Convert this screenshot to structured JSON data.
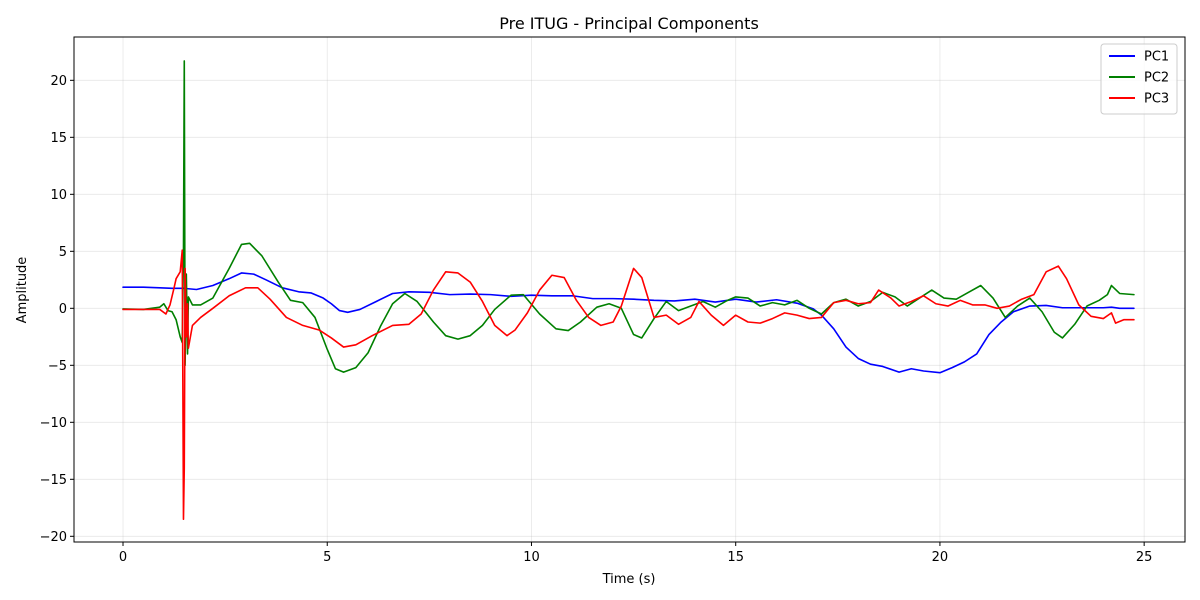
{
  "chart_data": {
    "type": "line",
    "title": "Pre ITUG - Principal Components",
    "xlabel": "Time (s)",
    "ylabel": "Amplitude",
    "xlim": [
      -1.2,
      26
    ],
    "ylim": [
      -20.5,
      23.8
    ],
    "xticks": [
      0,
      5,
      10,
      15,
      20,
      25
    ],
    "xtick_labels": [
      "0",
      "5",
      "10",
      "15",
      "20",
      "25"
    ],
    "yticks": [
      -20,
      -15,
      -10,
      -5,
      0,
      5,
      10,
      15,
      20
    ],
    "ytick_labels": [
      "−20",
      "−15",
      "−10",
      "−5",
      "0",
      "5",
      "10",
      "15",
      "20"
    ],
    "grid": true,
    "legend_position": "top-right",
    "series": [
      {
        "name": "PC1",
        "color": "#0000ff",
        "points": [
          [
            0,
            1.85
          ],
          [
            0.5,
            1.85
          ],
          [
            0.9,
            1.8
          ],
          [
            1.2,
            1.75
          ],
          [
            1.5,
            1.75
          ],
          [
            1.8,
            1.65
          ],
          [
            2.2,
            2.0
          ],
          [
            2.6,
            2.6
          ],
          [
            2.9,
            3.1
          ],
          [
            3.2,
            3.0
          ],
          [
            3.5,
            2.5
          ],
          [
            3.9,
            1.8
          ],
          [
            4.3,
            1.45
          ],
          [
            4.6,
            1.35
          ],
          [
            4.9,
            0.9
          ],
          [
            5.1,
            0.4
          ],
          [
            5.3,
            -0.2
          ],
          [
            5.5,
            -0.35
          ],
          [
            5.8,
            -0.1
          ],
          [
            6.2,
            0.6
          ],
          [
            6.6,
            1.3
          ],
          [
            7.0,
            1.45
          ],
          [
            7.5,
            1.4
          ],
          [
            8.0,
            1.2
          ],
          [
            8.5,
            1.25
          ],
          [
            9.0,
            1.2
          ],
          [
            9.5,
            1.05
          ],
          [
            10.0,
            1.15
          ],
          [
            10.5,
            1.1
          ],
          [
            11.0,
            1.1
          ],
          [
            11.5,
            0.85
          ],
          [
            12.0,
            0.85
          ],
          [
            12.5,
            0.8
          ],
          [
            13.0,
            0.7
          ],
          [
            13.5,
            0.65
          ],
          [
            14.0,
            0.8
          ],
          [
            14.5,
            0.55
          ],
          [
            15.0,
            0.8
          ],
          [
            15.5,
            0.55
          ],
          [
            16.0,
            0.75
          ],
          [
            16.5,
            0.45
          ],
          [
            16.9,
            -0.05
          ],
          [
            17.1,
            -0.6
          ],
          [
            17.4,
            -1.8
          ],
          [
            17.7,
            -3.4
          ],
          [
            18.0,
            -4.4
          ],
          [
            18.3,
            -4.9
          ],
          [
            18.6,
            -5.1
          ],
          [
            19.0,
            -5.6
          ],
          [
            19.3,
            -5.3
          ],
          [
            19.6,
            -5.5
          ],
          [
            20.0,
            -5.65
          ],
          [
            20.3,
            -5.2
          ],
          [
            20.6,
            -4.7
          ],
          [
            20.9,
            -4.0
          ],
          [
            21.2,
            -2.3
          ],
          [
            21.5,
            -1.2
          ],
          [
            21.8,
            -0.3
          ],
          [
            22.2,
            0.2
          ],
          [
            22.6,
            0.25
          ],
          [
            23.0,
            0.05
          ],
          [
            23.5,
            0.05
          ],
          [
            24.0,
            0.05
          ],
          [
            24.2,
            0.1
          ],
          [
            24.4,
            0.0
          ],
          [
            24.75,
            0.0
          ]
        ]
      },
      {
        "name": "PC2",
        "color": "#008000",
        "points": [
          [
            0,
            -0.05
          ],
          [
            0.5,
            -0.1
          ],
          [
            0.9,
            0.1
          ],
          [
            1.0,
            0.4
          ],
          [
            1.1,
            -0.2
          ],
          [
            1.2,
            -0.3
          ],
          [
            1.3,
            -1.0
          ],
          [
            1.4,
            -2.5
          ],
          [
            1.45,
            -3.0
          ],
          [
            1.48,
            5.0
          ],
          [
            1.5,
            21.7
          ],
          [
            1.52,
            -5.0
          ],
          [
            1.55,
            3.0
          ],
          [
            1.58,
            -4.0
          ],
          [
            1.6,
            1.0
          ],
          [
            1.7,
            0.3
          ],
          [
            1.9,
            0.3
          ],
          [
            2.2,
            0.9
          ],
          [
            2.6,
            3.5
          ],
          [
            2.9,
            5.6
          ],
          [
            3.1,
            5.7
          ],
          [
            3.4,
            4.6
          ],
          [
            3.8,
            2.3
          ],
          [
            4.1,
            0.7
          ],
          [
            4.4,
            0.5
          ],
          [
            4.7,
            -0.8
          ],
          [
            5.0,
            -3.6
          ],
          [
            5.2,
            -5.3
          ],
          [
            5.4,
            -5.6
          ],
          [
            5.7,
            -5.2
          ],
          [
            6.0,
            -3.9
          ],
          [
            6.3,
            -1.6
          ],
          [
            6.6,
            0.4
          ],
          [
            6.9,
            1.3
          ],
          [
            7.2,
            0.6
          ],
          [
            7.6,
            -1.2
          ],
          [
            7.9,
            -2.4
          ],
          [
            8.2,
            -2.7
          ],
          [
            8.5,
            -2.4
          ],
          [
            8.8,
            -1.5
          ],
          [
            9.1,
            -0.1
          ],
          [
            9.5,
            1.15
          ],
          [
            9.8,
            1.2
          ],
          [
            10.2,
            -0.5
          ],
          [
            10.6,
            -1.8
          ],
          [
            10.9,
            -1.95
          ],
          [
            11.2,
            -1.2
          ],
          [
            11.6,
            0.1
          ],
          [
            11.9,
            0.4
          ],
          [
            12.2,
            0.0
          ],
          [
            12.5,
            -2.3
          ],
          [
            12.7,
            -2.6
          ],
          [
            13.0,
            -0.9
          ],
          [
            13.3,
            0.6
          ],
          [
            13.6,
            -0.2
          ],
          [
            13.9,
            0.2
          ],
          [
            14.2,
            0.6
          ],
          [
            14.5,
            0.1
          ],
          [
            14.8,
            0.7
          ],
          [
            15.0,
            1.0
          ],
          [
            15.3,
            0.9
          ],
          [
            15.6,
            0.2
          ],
          [
            15.9,
            0.5
          ],
          [
            16.2,
            0.3
          ],
          [
            16.5,
            0.7
          ],
          [
            16.8,
            0.0
          ],
          [
            17.1,
            -0.5
          ],
          [
            17.4,
            0.5
          ],
          [
            17.7,
            0.8
          ],
          [
            18.0,
            0.2
          ],
          [
            18.3,
            0.6
          ],
          [
            18.6,
            1.4
          ],
          [
            18.9,
            1.0
          ],
          [
            19.2,
            0.2
          ],
          [
            19.5,
            0.9
          ],
          [
            19.8,
            1.6
          ],
          [
            20.1,
            0.9
          ],
          [
            20.4,
            0.8
          ],
          [
            20.7,
            1.4
          ],
          [
            21.0,
            2.0
          ],
          [
            21.3,
            0.9
          ],
          [
            21.6,
            -0.8
          ],
          [
            21.9,
            0.2
          ],
          [
            22.2,
            0.9
          ],
          [
            22.5,
            -0.3
          ],
          [
            22.8,
            -2.1
          ],
          [
            23.0,
            -2.6
          ],
          [
            23.3,
            -1.4
          ],
          [
            23.6,
            0.2
          ],
          [
            23.9,
            0.7
          ],
          [
            24.1,
            1.2
          ],
          [
            24.2,
            2.0
          ],
          [
            24.4,
            1.3
          ],
          [
            24.75,
            1.2
          ]
        ]
      },
      {
        "name": "PC3",
        "color": "#ff0000",
        "points": [
          [
            0,
            -0.1
          ],
          [
            0.5,
            -0.1
          ],
          [
            0.9,
            -0.1
          ],
          [
            1.05,
            -0.5
          ],
          [
            1.15,
            0.3
          ],
          [
            1.25,
            1.8
          ],
          [
            1.3,
            2.6
          ],
          [
            1.4,
            3.2
          ],
          [
            1.45,
            5.1
          ],
          [
            1.48,
            -18.5
          ],
          [
            1.5,
            -14.0
          ],
          [
            1.52,
            3.5
          ],
          [
            1.55,
            -2.5
          ],
          [
            1.58,
            0.4
          ],
          [
            1.6,
            -3.5
          ],
          [
            1.7,
            -1.5
          ],
          [
            1.9,
            -0.8
          ],
          [
            2.2,
            0.0
          ],
          [
            2.6,
            1.1
          ],
          [
            3.0,
            1.8
          ],
          [
            3.3,
            1.8
          ],
          [
            3.6,
            0.8
          ],
          [
            4.0,
            -0.8
          ],
          [
            4.4,
            -1.5
          ],
          [
            4.8,
            -1.9
          ],
          [
            5.1,
            -2.6
          ],
          [
            5.4,
            -3.4
          ],
          [
            5.7,
            -3.2
          ],
          [
            6.1,
            -2.4
          ],
          [
            6.6,
            -1.5
          ],
          [
            7.0,
            -1.4
          ],
          [
            7.3,
            -0.5
          ],
          [
            7.6,
            1.6
          ],
          [
            7.9,
            3.2
          ],
          [
            8.2,
            3.1
          ],
          [
            8.5,
            2.3
          ],
          [
            8.8,
            0.6
          ],
          [
            9.1,
            -1.5
          ],
          [
            9.4,
            -2.4
          ],
          [
            9.6,
            -1.9
          ],
          [
            9.9,
            -0.4
          ],
          [
            10.2,
            1.6
          ],
          [
            10.5,
            2.9
          ],
          [
            10.8,
            2.7
          ],
          [
            11.1,
            0.7
          ],
          [
            11.4,
            -0.8
          ],
          [
            11.7,
            -1.5
          ],
          [
            12.0,
            -1.2
          ],
          [
            12.2,
            0.2
          ],
          [
            12.5,
            3.5
          ],
          [
            12.7,
            2.7
          ],
          [
            13.0,
            -0.8
          ],
          [
            13.3,
            -0.6
          ],
          [
            13.6,
            -1.4
          ],
          [
            13.9,
            -0.8
          ],
          [
            14.1,
            0.6
          ],
          [
            14.4,
            -0.6
          ],
          [
            14.7,
            -1.5
          ],
          [
            15.0,
            -0.6
          ],
          [
            15.3,
            -1.2
          ],
          [
            15.6,
            -1.3
          ],
          [
            15.9,
            -0.9
          ],
          [
            16.2,
            -0.4
          ],
          [
            16.5,
            -0.6
          ],
          [
            16.8,
            -0.9
          ],
          [
            17.1,
            -0.8
          ],
          [
            17.4,
            0.5
          ],
          [
            17.7,
            0.7
          ],
          [
            18.0,
            0.4
          ],
          [
            18.3,
            0.5
          ],
          [
            18.5,
            1.6
          ],
          [
            18.8,
            0.9
          ],
          [
            19.0,
            0.2
          ],
          [
            19.3,
            0.6
          ],
          [
            19.6,
            1.1
          ],
          [
            19.9,
            0.4
          ],
          [
            20.2,
            0.2
          ],
          [
            20.5,
            0.7
          ],
          [
            20.8,
            0.3
          ],
          [
            21.1,
            0.3
          ],
          [
            21.4,
            0.0
          ],
          [
            21.7,
            0.2
          ],
          [
            22.0,
            0.8
          ],
          [
            22.3,
            1.2
          ],
          [
            22.6,
            3.2
          ],
          [
            22.9,
            3.7
          ],
          [
            23.1,
            2.6
          ],
          [
            23.4,
            0.3
          ],
          [
            23.7,
            -0.7
          ],
          [
            24.0,
            -0.9
          ],
          [
            24.2,
            -0.4
          ],
          [
            24.3,
            -1.3
          ],
          [
            24.5,
            -1.0
          ],
          [
            24.75,
            -1.0
          ]
        ]
      }
    ]
  }
}
